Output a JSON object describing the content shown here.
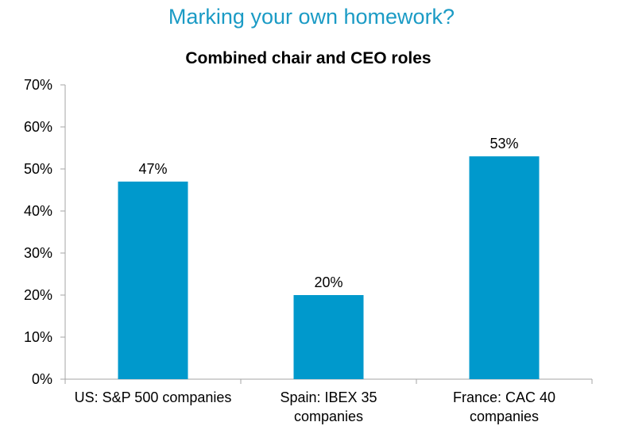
{
  "page": {
    "title": "Marking your own homework?"
  },
  "colors": {
    "title": "#1b9bc5",
    "bar": "#0099cc",
    "axis": "#a6a6a6"
  },
  "chart_data": {
    "type": "bar",
    "title": "Combined chair and CEO roles",
    "categories": [
      [
        "US: S&P 500 companies"
      ],
      [
        "Spain: IBEX 35",
        "companies"
      ],
      [
        "France: CAC 40",
        "companies"
      ]
    ],
    "values": [
      47,
      20,
      53
    ],
    "data_labels": [
      "47%",
      "20%",
      "53%"
    ],
    "ylim": [
      0,
      70
    ],
    "yticks": [
      0,
      10,
      20,
      30,
      40,
      50,
      60,
      70
    ],
    "ytick_labels": [
      "0%",
      "10%",
      "20%",
      "30%",
      "40%",
      "50%",
      "60%",
      "70%"
    ],
    "xlabel": "",
    "ylabel": "",
    "grid": false,
    "legend": "none"
  }
}
